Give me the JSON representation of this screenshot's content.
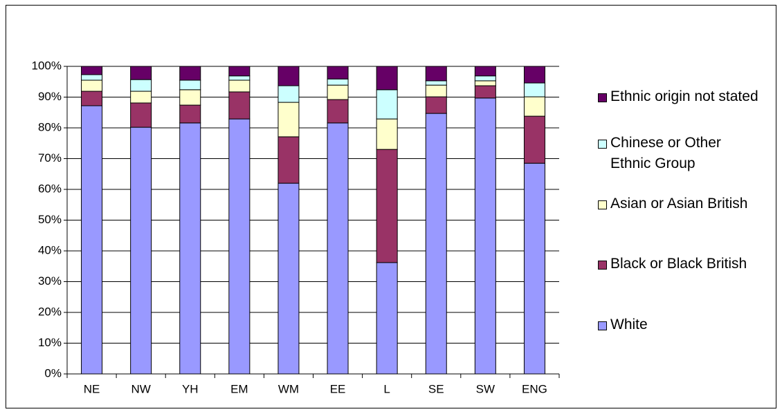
{
  "chart_data": {
    "type": "stacked_bar_percent",
    "categories": [
      "NE",
      "NW",
      "YH",
      "EM",
      "WM",
      "EE",
      "L",
      "SE",
      "SW",
      "ENG"
    ],
    "series": [
      {
        "name": "White",
        "color": "#9999ff",
        "values": [
          87.2,
          80.2,
          81.6,
          82.9,
          62.0,
          81.6,
          36.2,
          84.7,
          89.7,
          68.5
        ]
      },
      {
        "name": "Black or Black British",
        "color": "#993366",
        "values": [
          4.7,
          7.9,
          5.8,
          8.8,
          15.1,
          7.6,
          36.8,
          5.4,
          4.0,
          15.3
        ]
      },
      {
        "name": "Asian or Asian British",
        "color": "#ffffcc",
        "values": [
          3.6,
          3.8,
          5.0,
          3.8,
          11.2,
          4.7,
          9.9,
          3.8,
          1.6,
          6.3
        ]
      },
      {
        "name": "Chinese or Other  Ethnic Group",
        "color": "#ccffff",
        "values": [
          1.8,
          3.8,
          3.1,
          1.4,
          5.4,
          2.0,
          9.5,
          1.4,
          1.6,
          4.5
        ]
      },
      {
        "name": "Ethnic origin not stated",
        "color": "#660066",
        "values": [
          2.7,
          4.3,
          4.5,
          3.1,
          6.3,
          4.1,
          7.6,
          4.7,
          3.1,
          5.4
        ]
      }
    ],
    "ylim": [
      0,
      100
    ],
    "yticks": [
      {
        "value": 0,
        "label": "0%"
      },
      {
        "value": 10,
        "label": "10%"
      },
      {
        "value": 20,
        "label": "20%"
      },
      {
        "value": 30,
        "label": "30%"
      },
      {
        "value": 40,
        "label": "40%"
      },
      {
        "value": 50,
        "label": "50%"
      },
      {
        "value": 60,
        "label": "60%"
      },
      {
        "value": 70,
        "label": "70%"
      },
      {
        "value": 80,
        "label": "80%"
      },
      {
        "value": 90,
        "label": "90%"
      },
      {
        "value": 100,
        "label": "100%"
      }
    ],
    "grid": true,
    "legend": "right"
  }
}
